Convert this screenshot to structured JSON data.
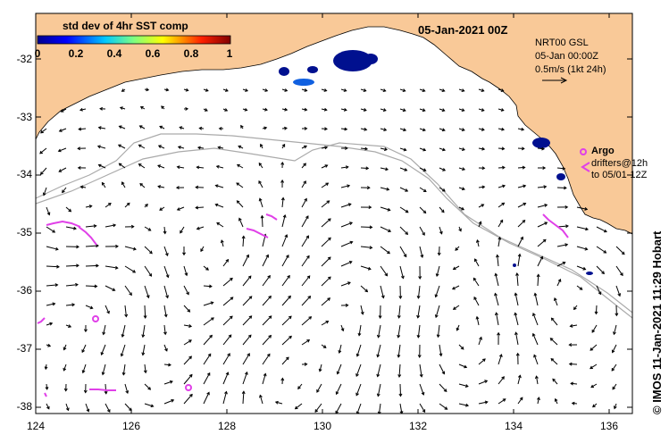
{
  "colorbar": {
    "title": "std dev of 4hr SST comp",
    "ticks": [
      "0",
      "0.2",
      "0.4",
      "0.6",
      "0.8",
      "1"
    ]
  },
  "map": {
    "date": "05-Jan-2021 00Z",
    "product_info": [
      "NRT00 GSL",
      "05-Jan 00:00Z",
      "0.5m/s (1kt 24h)"
    ],
    "argo_label": "Argo",
    "drifter_label": [
      "drifters@12h",
      "to 05/01-12Z"
    ],
    "credit": "© IMOS 11-Jan-2021 11:29 Hobart",
    "land_color": "#f9c998",
    "argo_color": "#e040e8"
  },
  "axes": {
    "y_labels": [
      "-32",
      "-33",
      "-34",
      "-35",
      "-36",
      "-37",
      "-38"
    ],
    "x_labels": [
      "124",
      "126",
      "128",
      "130",
      "132",
      "134",
      "136"
    ],
    "lon_range": [
      124,
      136.5
    ],
    "lat_range": [
      -31.4,
      -38.1
    ]
  }
}
